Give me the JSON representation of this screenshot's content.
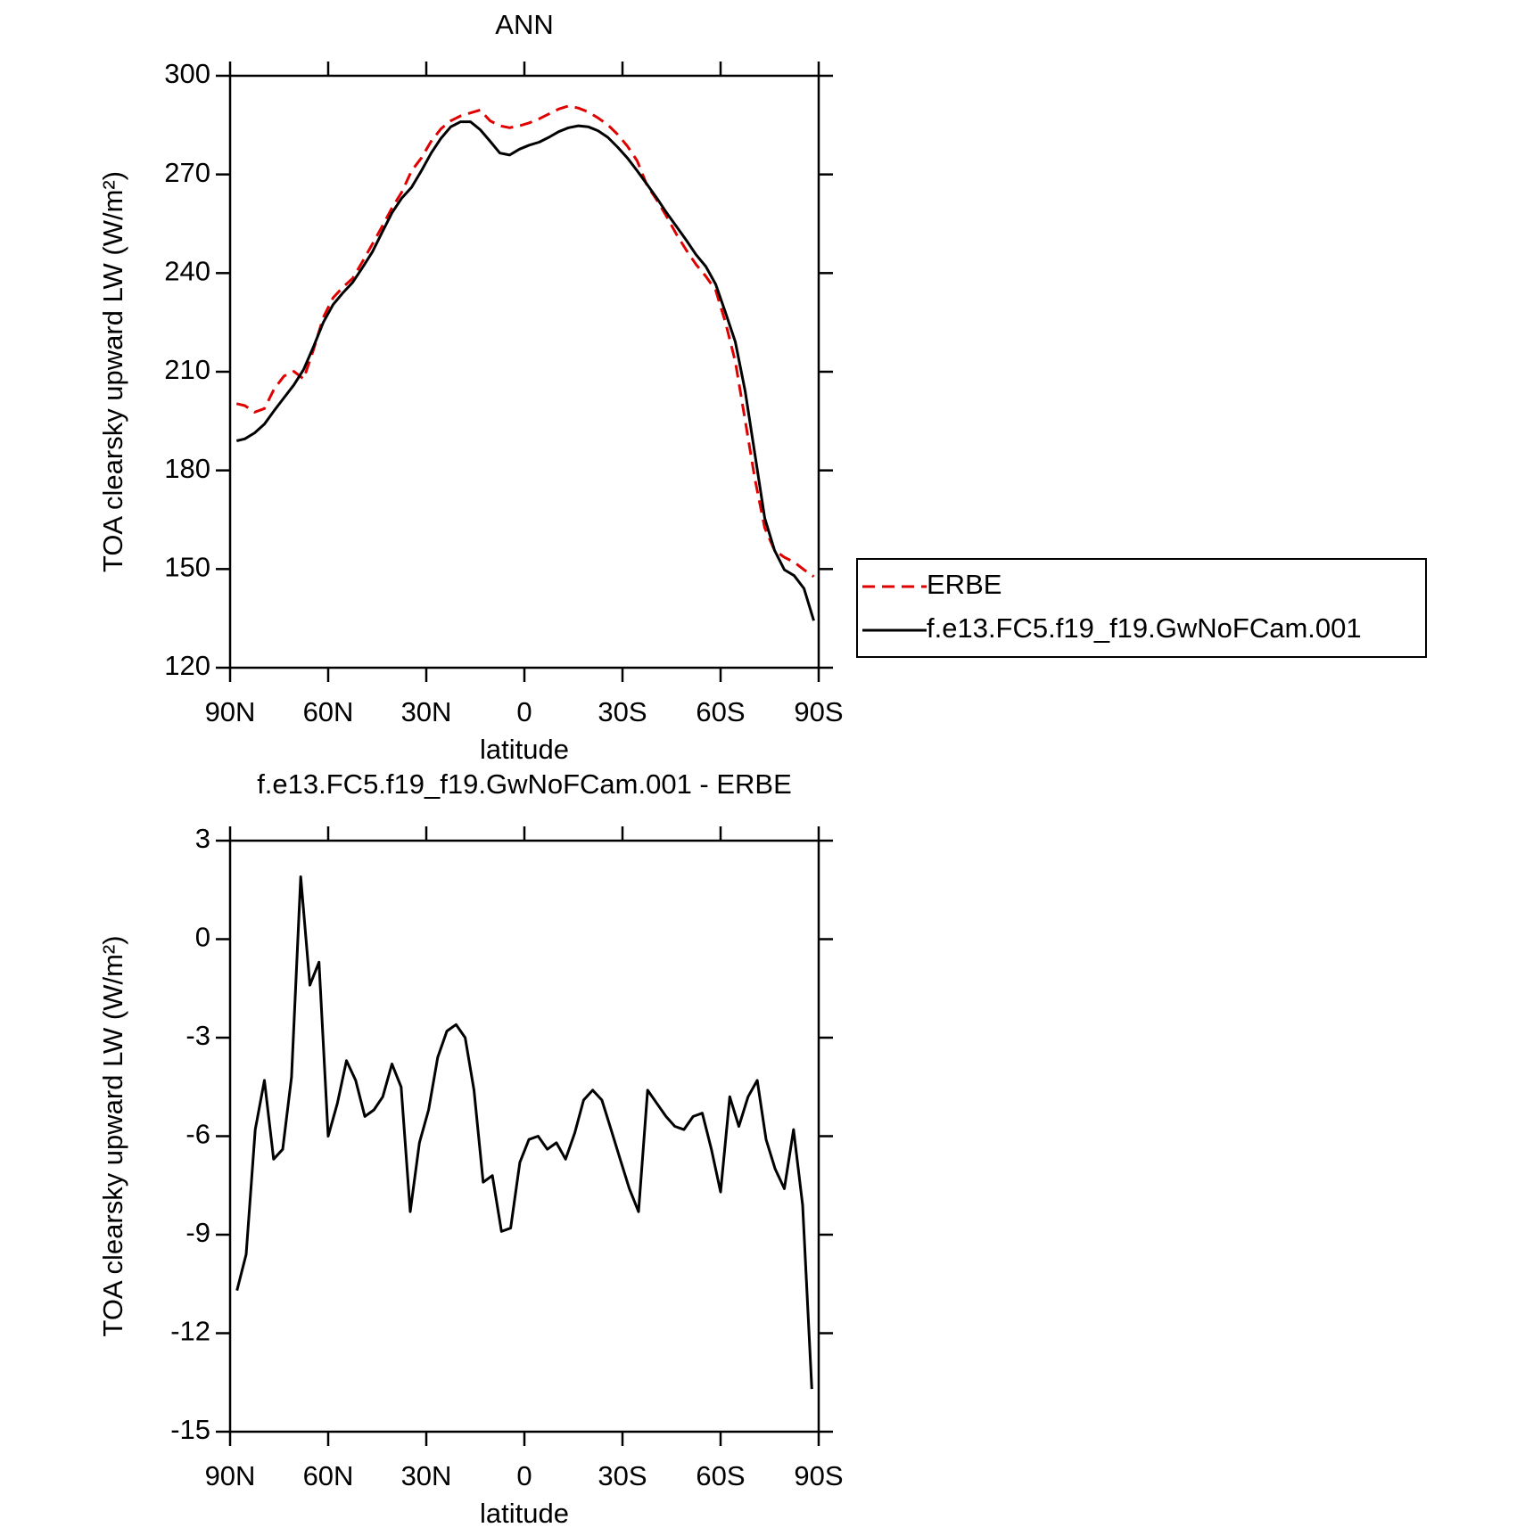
{
  "chart_data": [
    {
      "type": "line",
      "title": "ANN",
      "xlabel": "latitude",
      "ylabel": "TOA clearsky upward LW (W/m²)",
      "x": [
        88,
        85.5,
        82.5,
        79.5,
        76.5,
        73.5,
        70.5,
        67.5,
        64.5,
        61.5,
        58.5,
        55.5,
        52.5,
        49.5,
        46.5,
        43.5,
        40.5,
        37.5,
        34.5,
        31.5,
        28.5,
        25.5,
        22.5,
        19.5,
        16.5,
        13.5,
        10.5,
        7.5,
        4.5,
        1.5,
        -1.5,
        -4.5,
        -7.5,
        -10.5,
        -13.5,
        -16.5,
        -19.5,
        -22.5,
        -25.5,
        -28.5,
        -31.5,
        -34.5,
        -37.5,
        -40.5,
        -43.5,
        -46.5,
        -49.5,
        -52.5,
        -55.5,
        -58.5,
        -61.5,
        -64.5,
        -67.5,
        -70.5,
        -73.5,
        -76.5,
        -79.5,
        -82.5,
        -85.5,
        -88.5
      ],
      "series": [
        {
          "name": "ERBE",
          "color": "#e00000",
          "linestyle": "dashed",
          "values": [
            200.3,
            199.7,
            197.7,
            198.8,
            204.8,
            208.7,
            210.1,
            207.8,
            216.7,
            226.5,
            232.5,
            235.7,
            238.4,
            243.5,
            248.8,
            254.2,
            259.8,
            264.6,
            271.1,
            275.0,
            280.1,
            283.9,
            286.3,
            287.8,
            288.7,
            289.6,
            286.3,
            284.8,
            284.2,
            284.8,
            285.7,
            286.9,
            288.4,
            289.9,
            290.8,
            290.2,
            289.0,
            287.2,
            285.1,
            282.2,
            278.6,
            274.1,
            266.7,
            262.2,
            257.2,
            251.8,
            247.0,
            242.6,
            239.0,
            234.8,
            225.0,
            213.1,
            195.3,
            177.4,
            162.5,
            155.7,
            153.6,
            152.1,
            149.8,
            147.7
          ]
        },
        {
          "name": "f.e13.FC5.f19_f19.GwNoFCam.001",
          "color": "#000000",
          "linestyle": "solid",
          "values": [
            189.0,
            189.6,
            191.4,
            194.1,
            198.2,
            202.1,
            206.0,
            210.7,
            217.6,
            225.0,
            230.4,
            234.0,
            237.2,
            241.7,
            246.4,
            252.4,
            258.3,
            262.8,
            266.1,
            271.1,
            276.5,
            281.0,
            284.5,
            286.0,
            286.0,
            283.6,
            280.1,
            276.5,
            275.9,
            277.7,
            278.9,
            279.8,
            281.3,
            283.0,
            284.2,
            284.8,
            284.5,
            283.3,
            281.3,
            278.3,
            275.0,
            271.1,
            267.0,
            262.8,
            258.3,
            254.2,
            250.0,
            245.6,
            242.0,
            236.6,
            228.0,
            219.1,
            204.2,
            184.9,
            165.5,
            155.7,
            149.8,
            148.0,
            144.1,
            134.3
          ]
        }
      ],
      "xlim": [
        90,
        -90
      ],
      "xticks": [
        {
          "value": 90,
          "label": "90N"
        },
        {
          "value": 60,
          "label": "60N"
        },
        {
          "value": 30,
          "label": "30N"
        },
        0,
        {
          "value": -30,
          "label": "30S"
        },
        {
          "value": -60,
          "label": "60S"
        },
        {
          "value": -90,
          "label": "90S"
        }
      ],
      "ylim": [
        120,
        300
      ],
      "yticks": [
        120,
        150,
        180,
        210,
        240,
        270,
        300
      ],
      "legend": "right"
    },
    {
      "type": "line",
      "title": "f.e13.FC5.f19_f19.GwNoFCam.001 - ERBE",
      "xlabel": "latitude",
      "ylabel": "TOA clearsky upward LW (W/m²)",
      "x": [
        87.9,
        85.1,
        82.3,
        79.5,
        76.7,
        73.9,
        71.2,
        68.4,
        65.6,
        62.8,
        60.0,
        57.2,
        54.4,
        51.6,
        48.8,
        46.0,
        43.3,
        40.5,
        37.7,
        34.9,
        32.1,
        29.3,
        26.5,
        23.7,
        20.9,
        18.1,
        15.4,
        12.6,
        9.8,
        7.0,
        4.2,
        1.4,
        -1.4,
        -4.2,
        -7.0,
        -9.8,
        -12.6,
        -15.4,
        -18.1,
        -20.9,
        -23.7,
        -26.5,
        -29.3,
        -32.1,
        -34.9,
        -37.7,
        -40.5,
        -43.3,
        -46.0,
        -48.8,
        -51.6,
        -54.4,
        -57.2,
        -60.0,
        -62.8,
        -65.6,
        -68.4,
        -71.2,
        -73.9,
        -76.7,
        -79.5,
        -82.3,
        -85.1,
        -87.9
      ],
      "series": [
        {
          "color": "#000000",
          "linestyle": "solid",
          "values": [
            -10.7,
            -9.6,
            -5.8,
            -4.3,
            -6.7,
            -6.4,
            -4.2,
            1.9,
            -1.4,
            -0.7,
            -6.0,
            -5.0,
            -3.7,
            -4.3,
            -5.4,
            -5.2,
            -4.8,
            -3.8,
            -4.5,
            -8.3,
            -6.2,
            -5.2,
            -3.6,
            -2.8,
            -2.6,
            -3.0,
            -4.6,
            -7.4,
            -7.2,
            -8.9,
            -8.8,
            -6.8,
            -6.1,
            -6.0,
            -6.4,
            -6.2,
            -6.7,
            -5.9,
            -4.9,
            -4.6,
            -4.9,
            -5.8,
            -6.7,
            -7.6,
            -8.3,
            -4.6,
            -5.0,
            -5.4,
            -5.7,
            -5.8,
            -5.4,
            -5.3,
            -6.4,
            -7.7,
            -4.8,
            -5.7,
            -4.8,
            -4.3,
            -6.1,
            -7.0,
            -7.6,
            -5.8,
            -8.1,
            -13.7
          ]
        }
      ],
      "xlim": [
        90,
        -90
      ],
      "xticks": [
        {
          "value": 90,
          "label": "90N"
        },
        {
          "value": 60,
          "label": "60N"
        },
        {
          "value": 30,
          "label": "30N"
        },
        0,
        {
          "value": -30,
          "label": "30S"
        },
        {
          "value": -60,
          "label": "60S"
        },
        {
          "value": -90,
          "label": "90S"
        }
      ],
      "ylim": [
        -15,
        3
      ],
      "yticks": [
        -15,
        -12,
        -9,
        -6,
        -3,
        0,
        3
      ]
    }
  ]
}
